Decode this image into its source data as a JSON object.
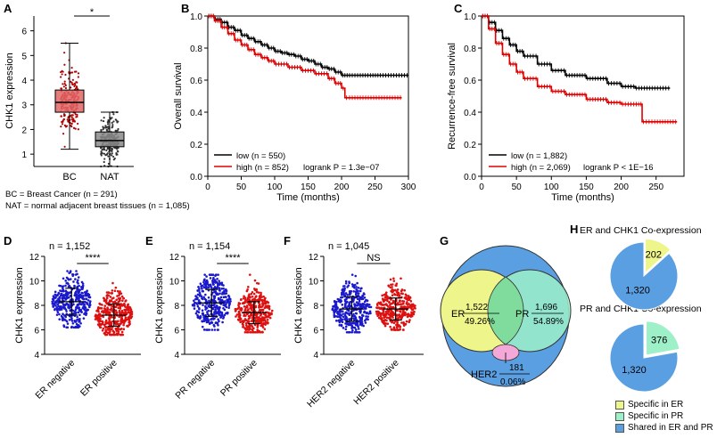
{
  "chart_data": [
    {
      "panel": "A",
      "type": "box",
      "ylabel": "CHK1 expression",
      "categories": [
        "BC",
        "NAT"
      ],
      "ylim": [
        0.5,
        6.6
      ],
      "yticks": [
        1,
        2,
        3,
        4,
        5,
        6
      ],
      "boxes": [
        {
          "name": "BC",
          "min": 1.2,
          "q1": 2.7,
          "median": 3.1,
          "q3": 3.6,
          "max": 5.5,
          "color": "#e06666"
        },
        {
          "name": "NAT",
          "min": 0.5,
          "q1": 1.3,
          "median": 1.55,
          "q3": 1.9,
          "max": 2.7,
          "color": "#8a8a8a"
        }
      ],
      "significance": "*",
      "notes": [
        "BC = Breast Cancer (n = 291)",
        "NAT = normal adjacent breast tissues (n = 1,085)"
      ]
    },
    {
      "panel": "B",
      "type": "line",
      "xlabel": "Time (months)",
      "ylabel": "Overall survival",
      "xlim": [
        0,
        300
      ],
      "ylim": [
        0,
        1.0
      ],
      "xticks": [
        0,
        50,
        100,
        150,
        200,
        250,
        300
      ],
      "yticks": [
        0.0,
        0.2,
        0.4,
        0.6,
        0.8,
        1.0
      ],
      "series": [
        {
          "name": "low (n = 550)",
          "color": "#000000",
          "x": [
            0,
            10,
            20,
            30,
            40,
            50,
            60,
            70,
            80,
            90,
            100,
            110,
            120,
            130,
            140,
            150,
            160,
            170,
            180,
            190,
            200,
            210,
            230,
            260,
            300
          ],
          "y": [
            1.0,
            0.98,
            0.96,
            0.93,
            0.91,
            0.88,
            0.86,
            0.84,
            0.82,
            0.8,
            0.78,
            0.77,
            0.76,
            0.75,
            0.73,
            0.72,
            0.7,
            0.68,
            0.67,
            0.65,
            0.63,
            0.63,
            0.63,
            0.63,
            0.63
          ]
        },
        {
          "name": "high (n = 852)",
          "color": "#dd0000",
          "x": [
            0,
            10,
            20,
            30,
            40,
            50,
            60,
            70,
            80,
            90,
            100,
            120,
            140,
            160,
            180,
            190,
            200,
            205,
            210,
            230,
            250,
            290
          ],
          "y": [
            1.0,
            0.97,
            0.93,
            0.89,
            0.85,
            0.82,
            0.79,
            0.76,
            0.74,
            0.72,
            0.7,
            0.68,
            0.66,
            0.64,
            0.61,
            0.58,
            0.55,
            0.49,
            0.49,
            0.49,
            0.49,
            0.49
          ]
        }
      ],
      "logrank": "logrank P = 1.3e−07"
    },
    {
      "panel": "C",
      "type": "line",
      "xlabel": "Time (months)",
      "ylabel": "Recurrence-free survival",
      "xlim": [
        0,
        290
      ],
      "ylim": [
        0,
        1.0
      ],
      "xticks": [
        0,
        50,
        100,
        150,
        200,
        250
      ],
      "yticks": [
        0.0,
        0.2,
        0.4,
        0.6,
        0.8,
        1.0
      ],
      "series": [
        {
          "name": "low (n = 1,882)",
          "color": "#000000",
          "x": [
            0,
            10,
            20,
            30,
            40,
            50,
            60,
            80,
            100,
            120,
            150,
            180,
            200,
            220,
            250,
            270
          ],
          "y": [
            1.0,
            0.96,
            0.91,
            0.86,
            0.82,
            0.78,
            0.75,
            0.7,
            0.66,
            0.63,
            0.61,
            0.58,
            0.56,
            0.55,
            0.55,
            0.55
          ]
        },
        {
          "name": "high (n = 2,069)",
          "color": "#dd0000",
          "x": [
            0,
            10,
            20,
            30,
            40,
            50,
            60,
            80,
            100,
            120,
            150,
            180,
            200,
            220,
            230,
            250,
            280
          ],
          "y": [
            1.0,
            0.92,
            0.83,
            0.76,
            0.7,
            0.65,
            0.61,
            0.56,
            0.53,
            0.51,
            0.48,
            0.46,
            0.45,
            0.45,
            0.34,
            0.34,
            0.34
          ]
        }
      ],
      "logrank": "logrank P < 1E−16"
    },
    {
      "panel": "D",
      "type": "scatter",
      "ylabel": "CHK1 expression",
      "n_label": "n = 1,152",
      "categories": [
        "ER negative",
        "ER positive"
      ],
      "ylim": [
        4,
        12
      ],
      "yticks": [
        4,
        6,
        8,
        10,
        12
      ],
      "groups": [
        {
          "name": "ER negative",
          "mean": 8.3,
          "sd": 1.1,
          "min": 6.2,
          "max": 10.8,
          "color": "#1a1acc"
        },
        {
          "name": "ER positive",
          "mean": 7.2,
          "sd": 0.9,
          "min": 5.6,
          "max": 10.2,
          "color": "#dd1111"
        }
      ],
      "significance": "****"
    },
    {
      "panel": "E",
      "type": "scatter",
      "ylabel": "CHK1 expression",
      "n_label": "n = 1,154",
      "categories": [
        "PR negative",
        "PR positive"
      ],
      "ylim": [
        4,
        12
      ],
      "yticks": [
        4,
        6,
        8,
        10,
        12
      ],
      "groups": [
        {
          "name": "PR negative",
          "mean": 8.2,
          "sd": 1.1,
          "min": 6.0,
          "max": 10.5,
          "color": "#1a1acc"
        },
        {
          "name": "PR positive",
          "mean": 7.4,
          "sd": 0.9,
          "min": 5.8,
          "max": 10.5,
          "color": "#dd1111"
        }
      ],
      "significance": "****"
    },
    {
      "panel": "F",
      "type": "scatter",
      "ylabel": "CHK1 expression",
      "n_label": "n = 1,045",
      "categories": [
        "HER2 negative",
        "HER2 positive"
      ],
      "ylim": [
        4,
        12
      ],
      "yticks": [
        4,
        6,
        8,
        10,
        12
      ],
      "groups": [
        {
          "name": "HER2 negative",
          "mean": 7.7,
          "sd": 1.0,
          "min": 5.8,
          "max": 10.5,
          "color": "#1a1acc"
        },
        {
          "name": "HER2 positive",
          "mean": 7.7,
          "sd": 0.9,
          "min": 6.0,
          "max": 10.2,
          "color": "#dd1111"
        }
      ],
      "significance": "NS"
    },
    {
      "panel": "G",
      "type": "venn",
      "sets": [
        {
          "name": "ER",
          "count": "1,522",
          "percent": "49.26%",
          "color": "#eef58a"
        },
        {
          "name": "PR",
          "count": "1,696",
          "percent": "54.89%",
          "color": "#9ef0c9"
        },
        {
          "name": "HER2",
          "count": "181",
          "percent": "0.06%",
          "color": "#f3a8d8"
        }
      ],
      "universe_color": "#5b9fe3"
    },
    {
      "panel": "H",
      "type": "pie",
      "pies": [
        {
          "title": "ER and CHK1 Co-expression",
          "values": [
            202,
            1320
          ],
          "labels": [
            "202",
            "1,320"
          ],
          "colors": [
            "#eef58a",
            "#5b9fe3"
          ]
        },
        {
          "title": "PR and CHK1 Co-expression",
          "values": [
            376,
            1320
          ],
          "labels": [
            "376",
            "1,320"
          ],
          "colors": [
            "#9ef0c9",
            "#5b9fe3"
          ]
        }
      ],
      "legend": [
        {
          "label": "Specific in ER",
          "color": "#eef58a"
        },
        {
          "label": "Specific in PR",
          "color": "#9ef0c9"
        },
        {
          "label": "Shared in ER and PR",
          "color": "#5b9fe3"
        }
      ]
    }
  ]
}
